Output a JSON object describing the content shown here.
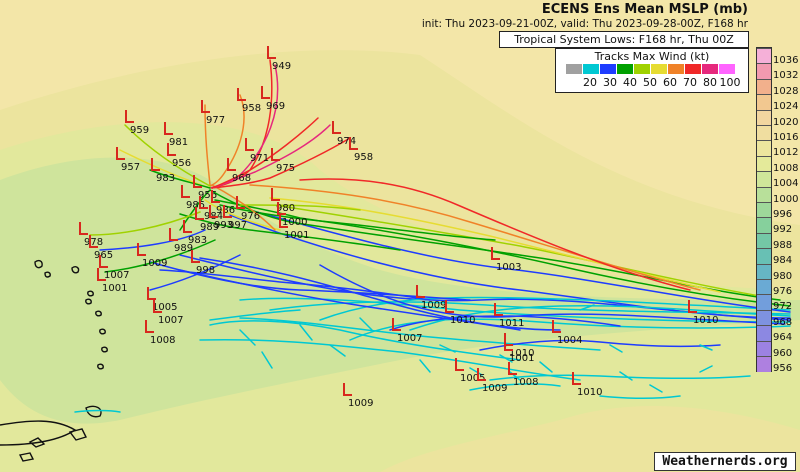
{
  "header": {
    "title": "ECENS Ens Mean MSLP (mb)",
    "subtitle": "init: Thu 2023-09-21-00Z, valid: Thu 2023-09-28-00Z, F168 hr",
    "lows_label": "Tropical System Lows: F168 hr, Thu 00Z"
  },
  "wind_legend": {
    "title": "Tracks Max Wind (kt)",
    "colors": [
      "#a0a0a0",
      "#00c8d2",
      "#1e3cff",
      "#00a000",
      "#a0d200",
      "#e6dc32",
      "#f08228",
      "#f02828",
      "#e6287d",
      "#ff64ff"
    ],
    "labels": [
      "20",
      "30",
      "40",
      "50",
      "60",
      "70",
      "80",
      "100"
    ]
  },
  "colorbar": {
    "labels": [
      "1036",
      "1032",
      "1028",
      "1024",
      "1020",
      "1016",
      "1012",
      "1008",
      "1004",
      "1000",
      "996",
      "992",
      "988",
      "984",
      "980",
      "976",
      "972",
      "968",
      "964",
      "960",
      "956"
    ],
    "colors": [
      "#f5b0d8",
      "#f29ab0",
      "#f2b08c",
      "#f2c890",
      "#f2d6a0",
      "#f0dea0",
      "#ede69e",
      "#e4ea9a",
      "#cfe69a",
      "#b8e09a",
      "#9ed89a",
      "#86d09c",
      "#74c8a6",
      "#68c0b4",
      "#66b6c4",
      "#6aaad4",
      "#729edc",
      "#7e92e0",
      "#8c88e2",
      "#9c82e2",
      "#ae80e0"
    ]
  },
  "credit": "Weathernerds.org",
  "lows": [
    {
      "v": "949"
    },
    {
      "v": "958"
    },
    {
      "v": "969"
    },
    {
      "v": "977"
    },
    {
      "v": "959"
    },
    {
      "v": "981"
    },
    {
      "v": "956"
    },
    {
      "v": "974"
    },
    {
      "v": "958"
    },
    {
      "v": "971"
    },
    {
      "v": "975"
    },
    {
      "v": "957"
    },
    {
      "v": "956"
    },
    {
      "v": "983"
    },
    {
      "v": "968"
    },
    {
      "v": "985"
    },
    {
      "v": "986"
    },
    {
      "v": "984"
    },
    {
      "v": "993"
    },
    {
      "v": "976"
    },
    {
      "v": "997"
    },
    {
      "v": "980"
    },
    {
      "v": "1000"
    },
    {
      "v": "1001"
    },
    {
      "v": "989"
    },
    {
      "v": "983"
    },
    {
      "v": "989"
    },
    {
      "v": "978"
    },
    {
      "v": "965"
    },
    {
      "v": "1009"
    },
    {
      "v": "998"
    },
    {
      "v": "1007"
    },
    {
      "v": "1001"
    },
    {
      "v": "1005"
    },
    {
      "v": "1007"
    },
    {
      "v": "1008"
    },
    {
      "v": "1003"
    },
    {
      "v": "1009"
    },
    {
      "v": "1010"
    },
    {
      "v": "1011"
    },
    {
      "v": "1010"
    },
    {
      "v": "1007"
    },
    {
      "v": "1004"
    },
    {
      "v": "1010"
    },
    {
      "v": "1001"
    },
    {
      "v": "1005"
    },
    {
      "v": "1009"
    },
    {
      "v": "1008"
    },
    {
      "v": "1010"
    },
    {
      "v": "1009"
    }
  ]
}
